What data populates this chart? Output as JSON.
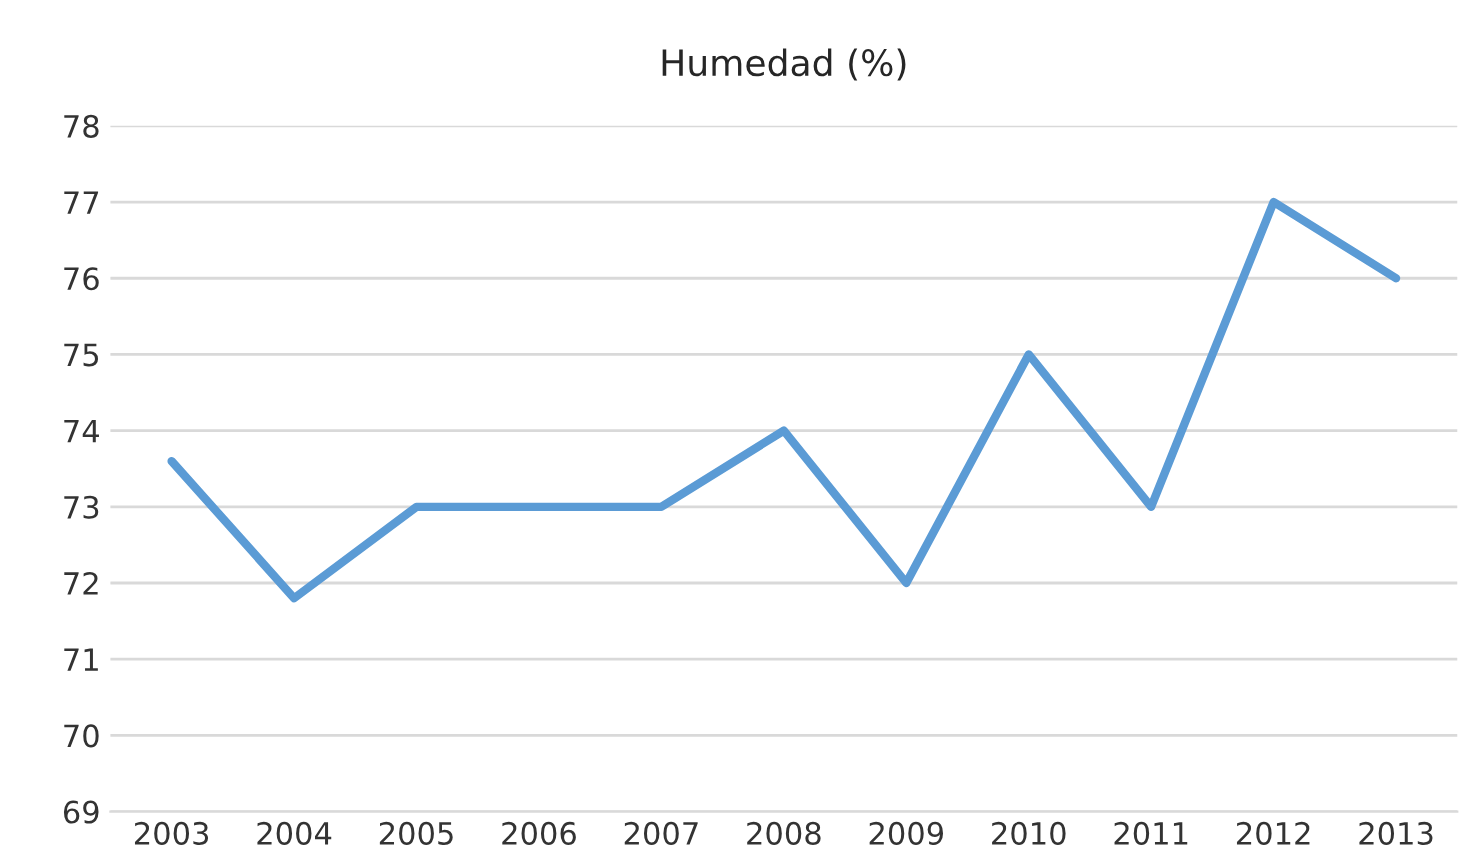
{
  "chart_data": {
    "type": "line",
    "title": "Humedad (%)",
    "categories": [
      "2003",
      "2004",
      "2005",
      "2006",
      "2007",
      "2008",
      "2009",
      "2010",
      "2011",
      "2012",
      "2013"
    ],
    "series": [
      {
        "color": "#5b9bd5",
        "values": [
          73.6,
          71.8,
          73,
          73,
          73,
          74,
          72,
          75,
          73,
          77,
          76
        ]
      }
    ],
    "ylim": [
      69,
      78
    ],
    "yticks": [
      69,
      70,
      71,
      72,
      73,
      74,
      75,
      76,
      77,
      78
    ],
    "grid": "y",
    "legend": false,
    "marker": "none",
    "line_style": "solid"
  }
}
